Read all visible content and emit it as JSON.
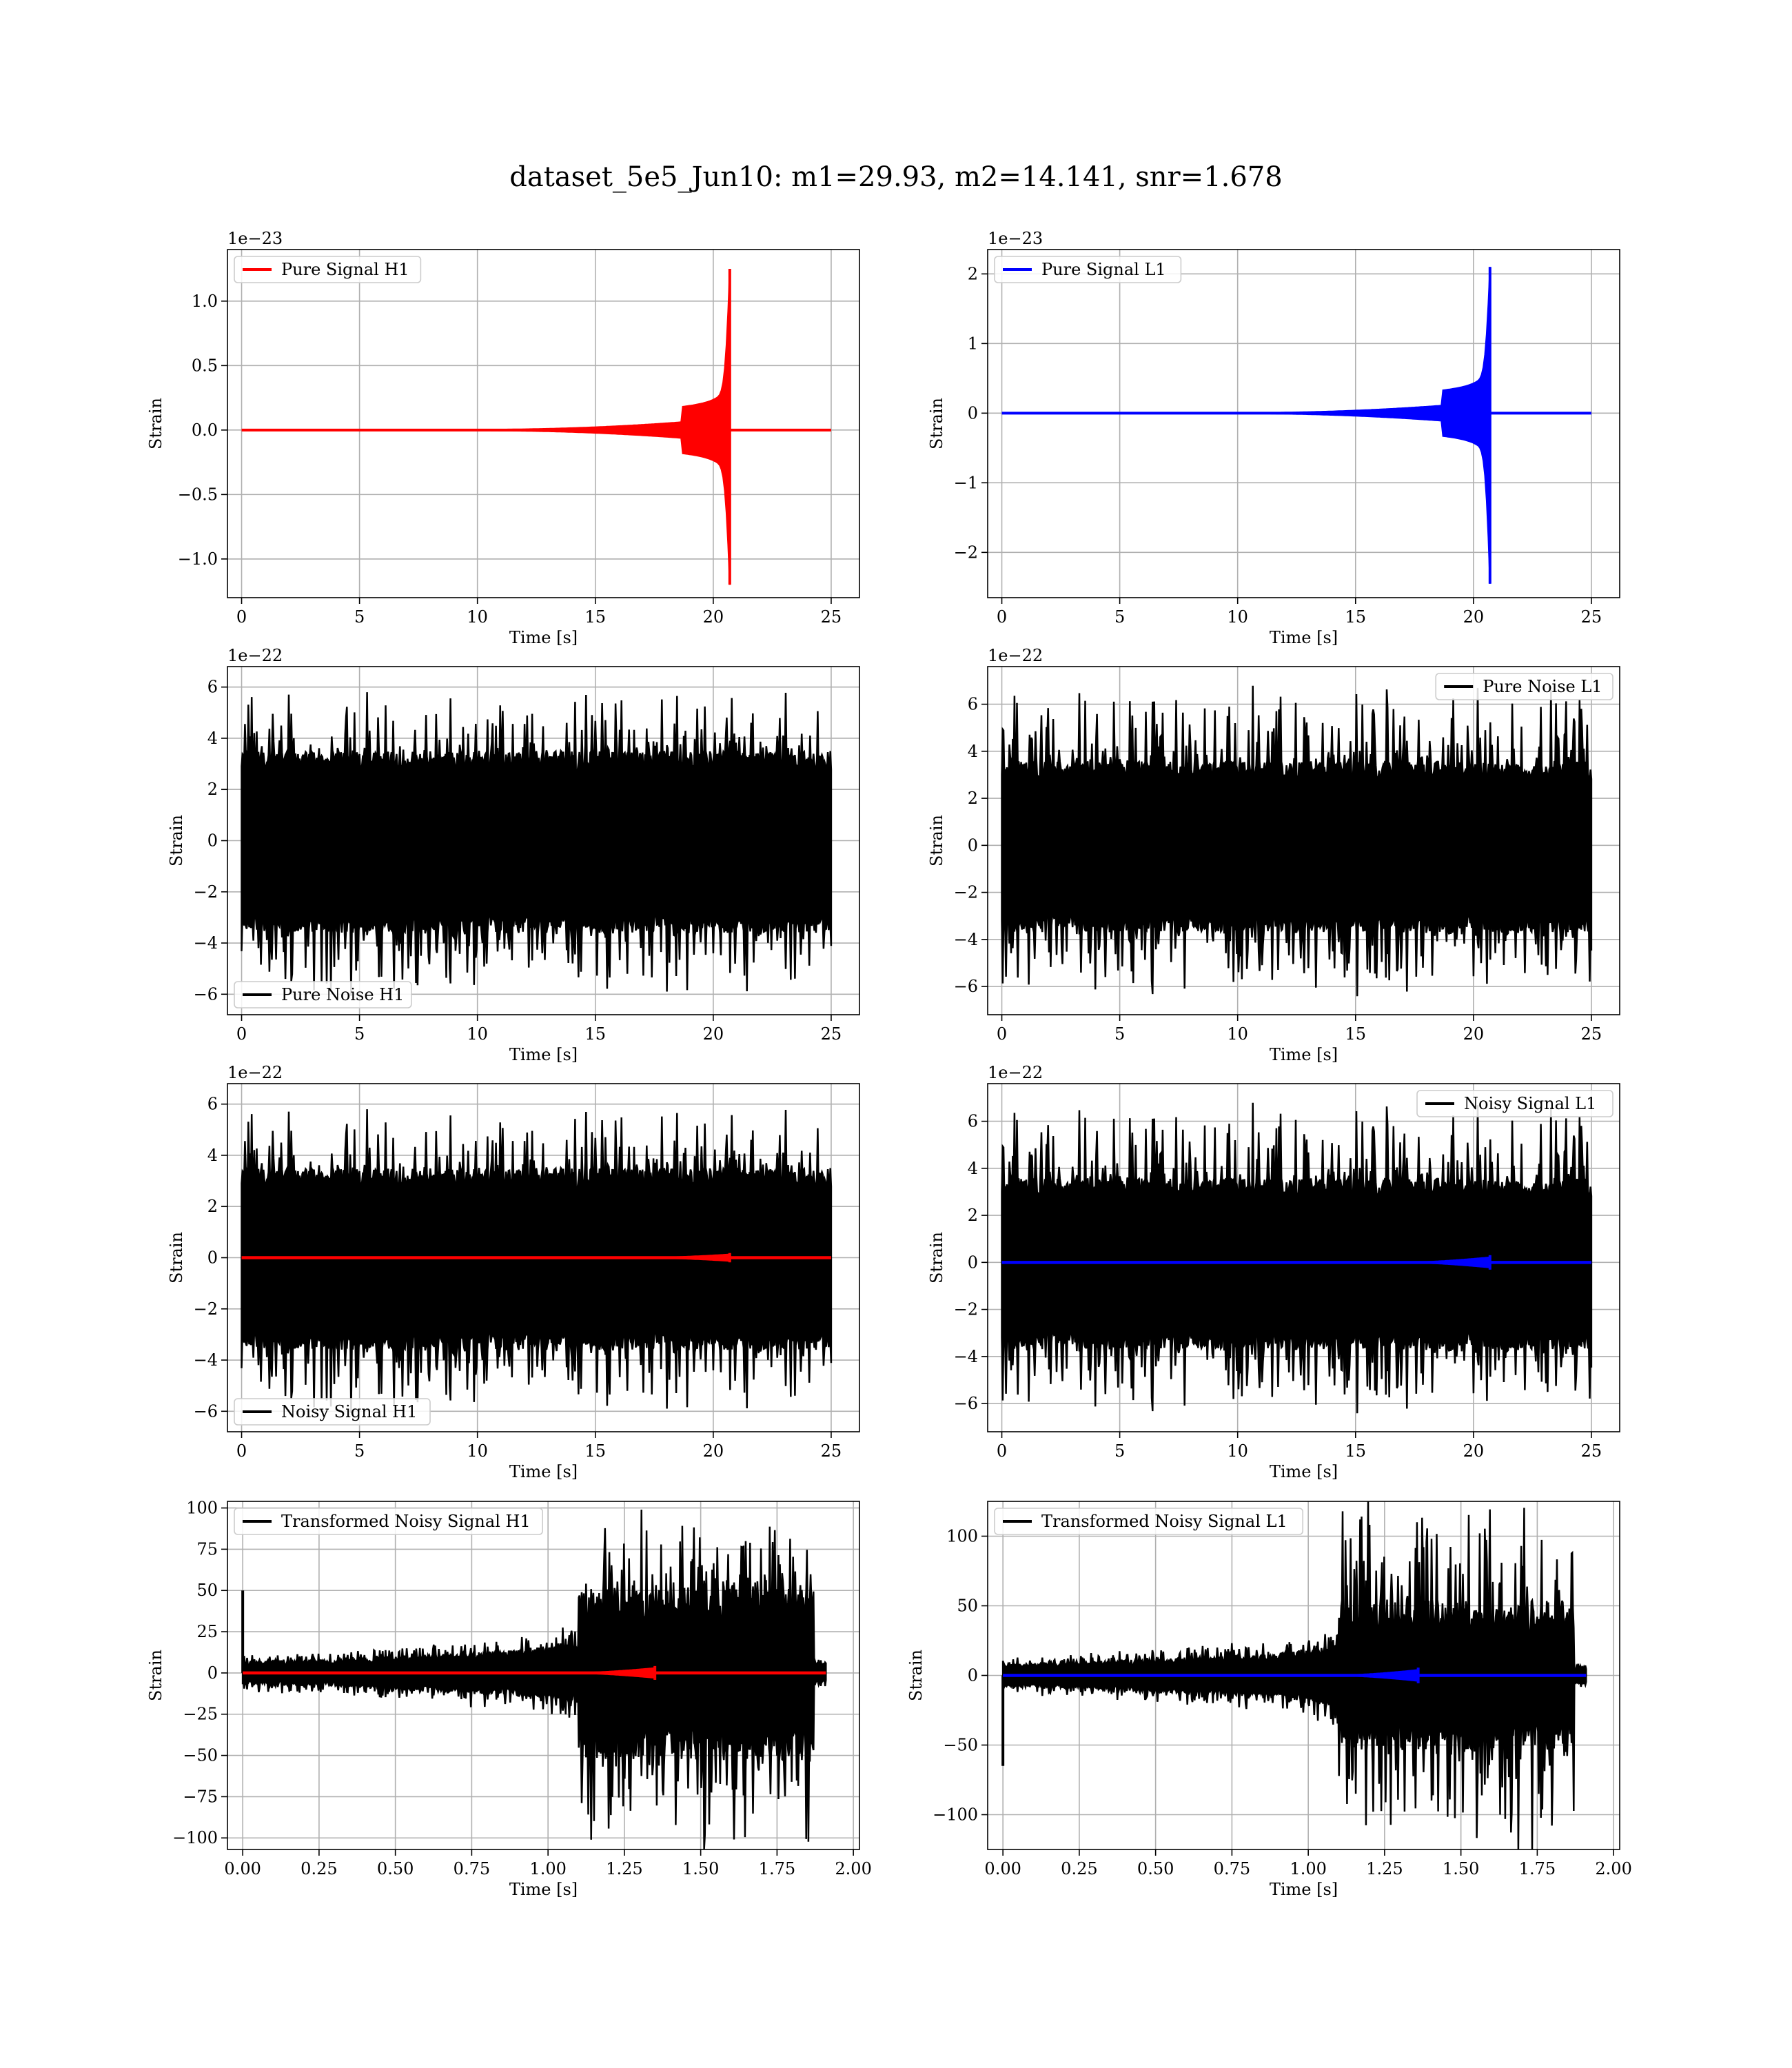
{
  "figure": {
    "title": "dataset_5e5_Jun10: m1=29.93, m2=14.141, snr=1.678"
  },
  "colors": {
    "h1_signal": "#ff0000",
    "l1_signal": "#0000ff",
    "noise": "#000000",
    "grid": "#b0b0b0",
    "background": "#ffffff"
  },
  "chart_data": [
    {
      "id": "pure-signal-h1",
      "type": "line",
      "title": "",
      "xlabel": "Time [s]",
      "ylabel": "Strain",
      "offset_text": "1e−23",
      "xlim": [
        -0.6,
        26.2
      ],
      "ylim": [
        -1.3,
        1.4
      ],
      "xticks": [
        0,
        5,
        10,
        15,
        20,
        25
      ],
      "xtick_labels": [
        "0",
        "5",
        "10",
        "15",
        "20",
        "25"
      ],
      "yticks": [
        -1.0,
        -0.5,
        0.0,
        0.5,
        1.0
      ],
      "ytick_labels": [
        "−1.0",
        "−0.5",
        "0.0",
        "0.5",
        "1.0"
      ],
      "grid": true,
      "legend_loc": "upper-left",
      "legend_label": "Pure Signal H1",
      "series": [
        {
          "name": "Pure Signal H1",
          "kind": "chirp",
          "color": "#ff0000",
          "x_start": 0,
          "x_end": 25,
          "merger_time": 20.7,
          "merger_max": 1.25,
          "merger_min": -1.2,
          "inspiral_level": 0.33,
          "inspiral_start": 18.7
        }
      ]
    },
    {
      "id": "pure-signal-l1",
      "type": "line",
      "title": "",
      "xlabel": "Time [s]",
      "ylabel": "Strain",
      "offset_text": "1e−23",
      "xlim": [
        -0.6,
        26.2
      ],
      "ylim": [
        -2.65,
        2.35
      ],
      "xticks": [
        0,
        5,
        10,
        15,
        20,
        25
      ],
      "xtick_labels": [
        "0",
        "5",
        "10",
        "15",
        "20",
        "25"
      ],
      "yticks": [
        -2,
        -1,
        0,
        1,
        2
      ],
      "ytick_labels": [
        "−2",
        "−1",
        "0",
        "1",
        "2"
      ],
      "grid": true,
      "legend_loc": "upper-left",
      "legend_label": "Pure Signal L1",
      "series": [
        {
          "name": "Pure Signal L1",
          "kind": "chirp",
          "color": "#0000ff",
          "x_start": 0,
          "x_end": 25,
          "merger_time": 20.7,
          "merger_max": 2.1,
          "merger_min": -2.45,
          "inspiral_level": 0.6,
          "inspiral_start": 18.7
        }
      ]
    },
    {
      "id": "pure-noise-h1",
      "type": "line",
      "title": "",
      "xlabel": "Time [s]",
      "ylabel": "Strain",
      "offset_text": "1e−22",
      "xlim": [
        -0.6,
        26.2
      ],
      "ylim": [
        -6.8,
        6.8
      ],
      "xticks": [
        0,
        5,
        10,
        15,
        20,
        25
      ],
      "xtick_labels": [
        "0",
        "5",
        "10",
        "15",
        "20",
        "25"
      ],
      "yticks": [
        -6,
        -4,
        -2,
        0,
        2,
        4,
        6
      ],
      "ytick_labels": [
        "−6",
        "−4",
        "−2",
        "0",
        "2",
        "4",
        "6"
      ],
      "grid": true,
      "legend_loc": "lower-left",
      "legend_label": "Pure Noise H1",
      "series": [
        {
          "name": "Pure Noise H1",
          "kind": "noise",
          "color": "#000000",
          "x_start": 0,
          "x_end": 25,
          "core_max": 3.5,
          "core_min": -3.6,
          "peak_max": 6.1,
          "peak_min": -6.3,
          "seed": 11
        }
      ]
    },
    {
      "id": "pure-noise-l1",
      "type": "line",
      "title": "",
      "xlabel": "Time [s]",
      "ylabel": "Strain",
      "offset_text": "1e−22",
      "xlim": [
        -0.6,
        26.2
      ],
      "ylim": [
        -7.2,
        7.6
      ],
      "xticks": [
        0,
        5,
        10,
        15,
        20,
        25
      ],
      "xtick_labels": [
        "0",
        "5",
        "10",
        "15",
        "20",
        "25"
      ],
      "yticks": [
        -6,
        -4,
        -2,
        0,
        2,
        4,
        6
      ],
      "ytick_labels": [
        "−6",
        "−4",
        "−2",
        "0",
        "2",
        "4",
        "6"
      ],
      "grid": true,
      "legend_loc": "upper-right",
      "legend_label": "Pure Noise L1",
      "series": [
        {
          "name": "Pure Noise L1",
          "kind": "noise",
          "color": "#000000",
          "x_start": 0,
          "x_end": 25,
          "core_max": 3.6,
          "core_min": -3.7,
          "peak_max": 6.9,
          "peak_min": -6.6,
          "seed": 23
        }
      ]
    },
    {
      "id": "noisy-signal-h1",
      "type": "line",
      "title": "",
      "xlabel": "Time [s]",
      "ylabel": "Strain",
      "offset_text": "1e−22",
      "xlim": [
        -0.6,
        26.2
      ],
      "ylim": [
        -6.8,
        6.8
      ],
      "xticks": [
        0,
        5,
        10,
        15,
        20,
        25
      ],
      "xtick_labels": [
        "0",
        "5",
        "10",
        "15",
        "20",
        "25"
      ],
      "yticks": [
        -6,
        -4,
        -2,
        0,
        2,
        4,
        6
      ],
      "ytick_labels": [
        "−6",
        "−4",
        "−2",
        "0",
        "2",
        "4",
        "6"
      ],
      "grid": true,
      "legend_loc": "lower-left",
      "legend_label": "Noisy Signal H1",
      "series": [
        {
          "name": "Noisy Signal H1",
          "kind": "noise",
          "color": "#000000",
          "x_start": 0,
          "x_end": 25,
          "core_max": 3.5,
          "core_min": -3.6,
          "peak_max": 6.1,
          "peak_min": -6.3,
          "seed": 11
        },
        {
          "name": "",
          "kind": "flat-chirp",
          "color": "#ff0000",
          "x_start": 0,
          "x_end": 25,
          "level": 0,
          "merger_time": 20.7,
          "amp": 0.13
        }
      ]
    },
    {
      "id": "noisy-signal-l1",
      "type": "line",
      "title": "",
      "xlabel": "Time [s]",
      "ylabel": "Strain",
      "offset_text": "1e−22",
      "xlim": [
        -0.6,
        26.2
      ],
      "ylim": [
        -7.2,
        7.6
      ],
      "xticks": [
        0,
        5,
        10,
        15,
        20,
        25
      ],
      "xtick_labels": [
        "0",
        "5",
        "10",
        "15",
        "20",
        "25"
      ],
      "yticks": [
        -6,
        -4,
        -2,
        0,
        2,
        4,
        6
      ],
      "ytick_labels": [
        "−6",
        "−4",
        "−2",
        "0",
        "2",
        "4",
        "6"
      ],
      "grid": true,
      "legend_loc": "upper-right",
      "legend_label": "Noisy Signal L1",
      "series": [
        {
          "name": "Noisy Signal L1",
          "kind": "noise",
          "color": "#000000",
          "x_start": 0,
          "x_end": 25,
          "core_max": 3.6,
          "core_min": -3.7,
          "peak_max": 6.9,
          "peak_min": -6.6,
          "seed": 23
        },
        {
          "name": "",
          "kind": "flat-chirp",
          "color": "#0000ff",
          "x_start": 0,
          "x_end": 25,
          "level": 0,
          "merger_time": 20.7,
          "amp": 0.22
        }
      ]
    },
    {
      "id": "transformed-noisy-signal-h1",
      "type": "line",
      "title": "",
      "xlabel": "Time [s]",
      "ylabel": "Strain",
      "offset_text": "",
      "xlim": [
        -0.05,
        2.02
      ],
      "ylim": [
        -107,
        104
      ],
      "xticks": [
        0.0,
        0.25,
        0.5,
        0.75,
        1.0,
        1.25,
        1.5,
        1.75,
        2.0
      ],
      "xtick_labels": [
        "0.00",
        "0.25",
        "0.50",
        "0.75",
        "1.00",
        "1.25",
        "1.50",
        "1.75",
        "2.00"
      ],
      "yticks": [
        -100,
        -75,
        -50,
        -25,
        0,
        25,
        50,
        75,
        100
      ],
      "ytick_labels": [
        "−100",
        "−75",
        "−50",
        "−25",
        "0",
        "25",
        "50",
        "75",
        "100"
      ],
      "grid": true,
      "legend_loc": "upper-left",
      "legend_label": "Transformed Noisy Signal H1",
      "series": [
        {
          "name": "Transformed Noisy Signal H1",
          "kind": "transformed",
          "color": "#000000",
          "x_start": 0,
          "x_end": 1.91,
          "t_rise": 1.1,
          "t_end_burst": 1.87,
          "low_env": [
            [
              0.0,
              7
            ],
            [
              0.3,
              8
            ],
            [
              0.6,
              11
            ],
            [
              0.9,
              14
            ],
            [
              1.1,
              18
            ]
          ],
          "burst_max": 92,
          "burst_min": -105,
          "spike_t": 0.0,
          "spike_v": 50,
          "seed": 7
        },
        {
          "name": "",
          "kind": "flat-chirp",
          "color": "#ff0000",
          "x_start": 0,
          "x_end": 1.91,
          "level": 0,
          "merger_time": 1.35,
          "amp": 3
        }
      ]
    },
    {
      "id": "transformed-noisy-signal-l1",
      "type": "line",
      "title": "",
      "xlabel": "Time [s]",
      "ylabel": "Strain",
      "offset_text": "",
      "xlim": [
        -0.05,
        2.02
      ],
      "ylim": [
        -125,
        125
      ],
      "xticks": [
        0.0,
        0.25,
        0.5,
        0.75,
        1.0,
        1.25,
        1.5,
        1.75,
        2.0
      ],
      "xtick_labels": [
        "0.00",
        "0.25",
        "0.50",
        "0.75",
        "1.00",
        "1.25",
        "1.50",
        "1.75",
        "2.00"
      ],
      "yticks": [
        -100,
        -50,
        0,
        50,
        100
      ],
      "ytick_labels": [
        "−100",
        "−50",
        "0",
        "50",
        "100"
      ],
      "grid": true,
      "legend_loc": "upper-left",
      "legend_label": "Transformed Noisy Signal L1",
      "series": [
        {
          "name": "Transformed Noisy Signal L1",
          "kind": "transformed",
          "color": "#000000",
          "x_start": 0,
          "x_end": 1.91,
          "t_rise": 1.1,
          "t_end_burst": 1.87,
          "low_env": [
            [
              0.0,
              8
            ],
            [
              0.3,
              10
            ],
            [
              0.6,
              13
            ],
            [
              0.9,
              16
            ],
            [
              1.1,
              22
            ]
          ],
          "burst_max": 118,
          "burst_min": -122,
          "spike_t": 0.0,
          "spike_v": -65,
          "seed": 31
        },
        {
          "name": "",
          "kind": "flat-chirp",
          "color": "#0000ff",
          "x_start": 0,
          "x_end": 1.91,
          "level": 0,
          "merger_time": 1.36,
          "amp": 4
        }
      ]
    }
  ]
}
